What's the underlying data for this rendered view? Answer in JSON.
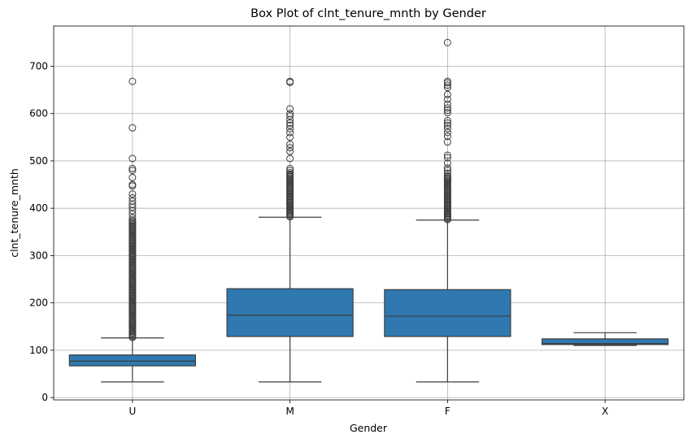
{
  "chart_data": {
    "type": "box",
    "title": "Box Plot of clnt_tenure_mnth by Gender",
    "xlabel": "Gender",
    "ylabel": "clnt_tenure_mnth",
    "ylim": [
      -5,
      785
    ],
    "yticks": [
      0,
      100,
      200,
      300,
      400,
      500,
      600,
      700
    ],
    "grid": true,
    "colors": {
      "box": "#2f79b0",
      "line": "#3d3d3d"
    },
    "categories": [
      "U",
      "M",
      "F",
      "X"
    ],
    "boxes": [
      {
        "category": "U",
        "whisker_low": 33,
        "q1": 67,
        "median": 77,
        "q3": 90,
        "whisker_high": 126,
        "outlier_dense_range": [
          127,
          375
        ],
        "outliers": [
          380,
          388,
          395,
          402,
          408,
          415,
          422,
          430,
          447,
          450,
          465,
          480,
          484,
          505,
          570,
          668
        ]
      },
      {
        "category": "M",
        "whisker_low": 33,
        "q1": 129,
        "median": 174,
        "q3": 230,
        "whisker_high": 381,
        "outlier_dense_range": [
          382,
          472
        ],
        "outliers": [
          475,
          480,
          484,
          505,
          520,
          528,
          535,
          550,
          560,
          568,
          575,
          580,
          587,
          595,
          600,
          610,
          666,
          668
        ]
      },
      {
        "category": "F",
        "whisker_low": 33,
        "q1": 129,
        "median": 172,
        "q3": 228,
        "whisker_high": 375,
        "outlier_dense_range": [
          376,
          470
        ],
        "outliers": [
          474,
          480,
          485,
          495,
          507,
          512,
          540,
          552,
          560,
          568,
          575,
          580,
          585,
          602,
          607,
          612,
          620,
          630,
          640,
          655,
          660,
          665,
          668,
          750
        ]
      },
      {
        "category": "X",
        "whisker_low": 110,
        "q1": 112,
        "median": 114,
        "q3": 124,
        "whisker_high": 137,
        "outlier_dense_range": null,
        "outliers": []
      }
    ]
  }
}
